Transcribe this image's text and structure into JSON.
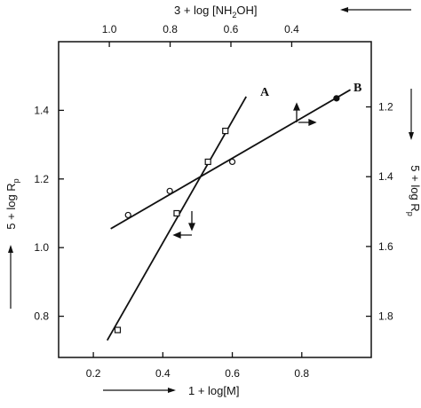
{
  "chart_data": {
    "type": "scatter",
    "title": "",
    "xlabel": "1 + log[M]",
    "x_top_label": "3 + log [NH",
    "x_top_label_sub": "2",
    "x_top_label_end": "OH]",
    "ylabel_left": "5 + log R",
    "ylabel_left_sub": "p",
    "ylabel_right": "5 + log R",
    "ylabel_right_sub": "p",
    "xlim": [
      0.1,
      1.0
    ],
    "ylim": [
      0.68,
      1.6
    ],
    "x_ticks": [
      "0.2",
      "0.4",
      "0.6",
      "0.8"
    ],
    "y_ticks": [
      "0.8",
      "1.0",
      "1.2",
      "1.4"
    ],
    "x_top_ticks": [
      "1.0",
      "0.8",
      "0.6",
      "0.4"
    ],
    "y_right_ticks": [
      "1.2",
      "1.4",
      "1.6",
      "1.8"
    ],
    "grid": false,
    "series": [
      {
        "name": "A",
        "marker": "square",
        "points": [
          {
            "x": 0.27,
            "y": 0.76
          },
          {
            "x": 0.44,
            "y": 1.1
          },
          {
            "x": 0.53,
            "y": 1.25
          },
          {
            "x": 0.58,
            "y": 1.34
          }
        ],
        "fit_line": [
          [
            0.24,
            0.73
          ],
          [
            0.64,
            1.44
          ]
        ]
      },
      {
        "name": "B",
        "marker": "circle",
        "points": [
          {
            "x": 0.3,
            "y": 1.095
          },
          {
            "x": 0.42,
            "y": 1.165
          },
          {
            "x": 0.6,
            "y": 1.25
          },
          {
            "x": 0.9,
            "y": 1.435
          }
        ],
        "fit_line": [
          [
            0.25,
            1.055
          ],
          [
            0.94,
            1.46
          ]
        ]
      }
    ]
  }
}
